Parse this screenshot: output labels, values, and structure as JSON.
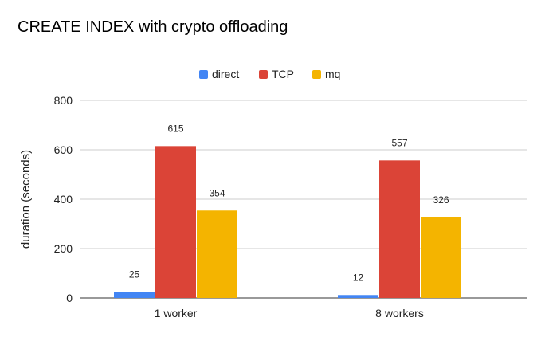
{
  "chart_data": {
    "type": "bar",
    "title": "CREATE INDEX with crypto offloading",
    "xlabel": "",
    "ylabel": "duration (seconds)",
    "ylim": [
      0,
      800
    ],
    "yticks": [
      "0",
      "200",
      "400",
      "600",
      "800"
    ],
    "grid": true,
    "legend_position": "top-center",
    "categories": [
      "1 worker",
      "8 workers"
    ],
    "series": [
      {
        "name": "direct",
        "color": "#4285f4",
        "values": [
          25,
          12
        ]
      },
      {
        "name": "TCP",
        "color": "#db4437",
        "values": [
          615,
          557
        ]
      },
      {
        "name": "mq",
        "color": "#f4b400",
        "values": [
          354,
          326
        ]
      }
    ]
  }
}
